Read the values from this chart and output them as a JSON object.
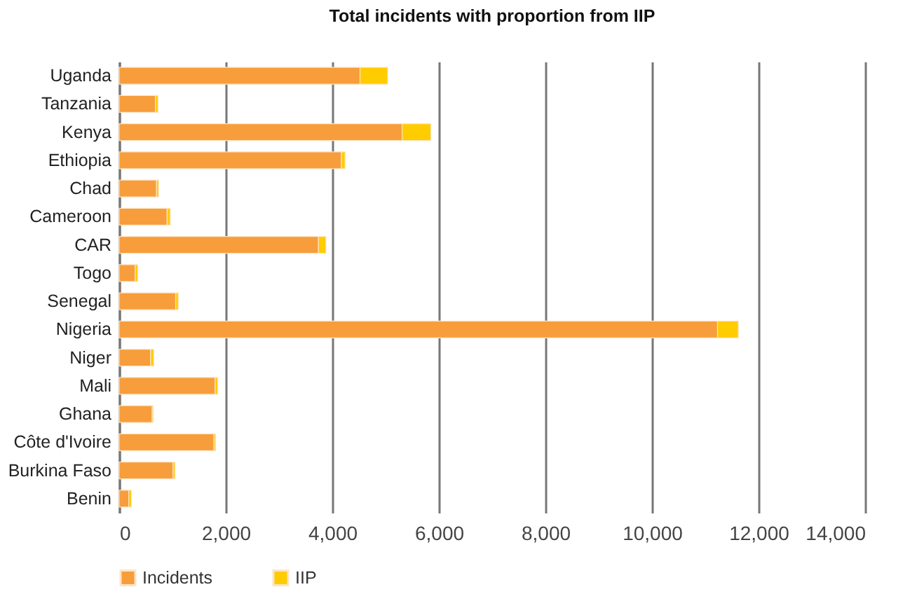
{
  "chart_data": {
    "type": "bar",
    "title": "Total incidents with proportion from IIP",
    "orientation": "horizontal",
    "stacked": true,
    "categories": [
      "Uganda",
      "Tanzania",
      "Kenya",
      "Ethiopia",
      "Chad",
      "Cameroon",
      "CAR",
      "Togo",
      "Senegal",
      "Nigeria",
      "Niger",
      "Mali",
      "Ghana",
      "Côte d'Ivoire",
      "Burkina Faso",
      "Benin"
    ],
    "series": [
      {
        "name": "Incidents",
        "color": "#f79d3b",
        "values": [
          4520,
          680,
          5310,
          4170,
          700,
          900,
          3740,
          300,
          1060,
          11230,
          590,
          1800,
          620,
          1780,
          1010,
          180
        ]
      },
      {
        "name": "IIP",
        "color": "#ffcc00",
        "values": [
          520,
          50,
          540,
          70,
          40,
          60,
          140,
          50,
          50,
          390,
          60,
          50,
          20,
          30,
          40,
          50
        ]
      }
    ],
    "xlim": [
      0,
      14000
    ],
    "xticks": [
      {
        "value": 0,
        "label": "0"
      },
      {
        "value": 2000,
        "label": "2,000"
      },
      {
        "value": 4000,
        "label": "4,000"
      },
      {
        "value": 6000,
        "label": "6,000"
      },
      {
        "value": 8000,
        "label": "8,000"
      },
      {
        "value": 10000,
        "label": "10,000"
      },
      {
        "value": 12000,
        "label": "12,000"
      },
      {
        "value": 14000,
        "label": "14,000"
      }
    ],
    "grid": "x",
    "legend": "bottom"
  }
}
